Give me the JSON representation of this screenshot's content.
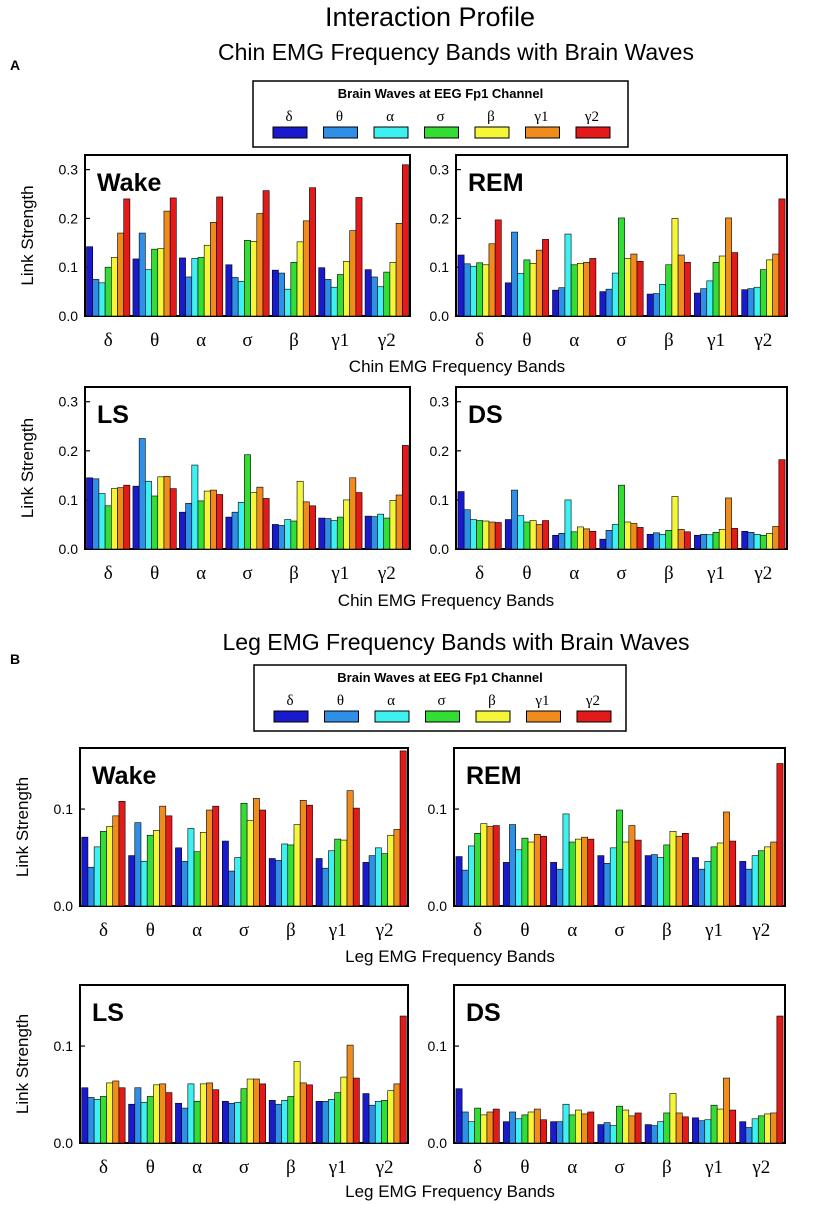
{
  "figure": {
    "title": "Interaction Profile",
    "panel_a": {
      "letter": "A",
      "subtitle": "Chin EMG Frequency Bands with Brain Waves",
      "xlabel": "Chin EMG Frequency Bands"
    },
    "panel_b": {
      "letter": "B",
      "subtitle": "Leg EMG Frequency Bands with Brain Waves",
      "xlabel": "Leg EMG Frequency Bands"
    },
    "ylabel": "Link Strength",
    "legend_title": "Brain Waves at EEG Fp1 Channel"
  },
  "series_colors": {
    "δ": "#1a1acd",
    "θ": "#2f8fe6",
    "α": "#3ff0f0",
    "σ": "#33dd33",
    "β": "#f5f53a",
    "γ1": "#f08c1e",
    "γ2": "#e21a1a"
  },
  "chart_data": [
    {
      "type": "bar",
      "panel": "A",
      "title": "Wake",
      "xlabel": "Chin EMG Frequency Bands",
      "ylabel": "Link Strength",
      "ylim": [
        0,
        0.33
      ],
      "yticks": [
        "0.0",
        "0.1",
        "0.2",
        "0.3"
      ],
      "categories": [
        "δ",
        "θ",
        "α",
        "σ",
        "β",
        "γ1",
        "γ2"
      ],
      "series": [
        {
          "name": "δ",
          "values": [
            0.142,
            0.117,
            0.119,
            0.105,
            0.094,
            0.099,
            0.095
          ]
        },
        {
          "name": "θ",
          "values": [
            0.075,
            0.17,
            0.08,
            0.079,
            0.088,
            0.075,
            0.08
          ]
        },
        {
          "name": "α",
          "values": [
            0.068,
            0.095,
            0.118,
            0.071,
            0.055,
            0.059,
            0.06
          ]
        },
        {
          "name": "σ",
          "values": [
            0.1,
            0.137,
            0.12,
            0.155,
            0.11,
            0.085,
            0.09
          ]
        },
        {
          "name": "β",
          "values": [
            0.12,
            0.138,
            0.145,
            0.153,
            0.152,
            0.112,
            0.11
          ]
        },
        {
          "name": "γ1",
          "values": [
            0.17,
            0.215,
            0.192,
            0.21,
            0.195,
            0.175,
            0.19
          ]
        },
        {
          "name": "γ2",
          "values": [
            0.24,
            0.242,
            0.244,
            0.257,
            0.263,
            0.243,
            0.31
          ]
        }
      ]
    },
    {
      "type": "bar",
      "panel": "A",
      "title": "REM",
      "xlabel": "Chin EMG Frequency Bands",
      "ylabel": "Link Strength",
      "ylim": [
        0,
        0.33
      ],
      "yticks": [
        "0.0",
        "0.1",
        "0.2",
        "0.3"
      ],
      "categories": [
        "δ",
        "θ",
        "α",
        "σ",
        "β",
        "γ1",
        "γ2"
      ],
      "series": [
        {
          "name": "δ",
          "values": [
            0.125,
            0.068,
            0.053,
            0.05,
            0.045,
            0.047,
            0.054
          ]
        },
        {
          "name": "θ",
          "values": [
            0.107,
            0.172,
            0.058,
            0.055,
            0.046,
            0.056,
            0.056
          ]
        },
        {
          "name": "α",
          "values": [
            0.102,
            0.087,
            0.168,
            0.088,
            0.065,
            0.072,
            0.059
          ]
        },
        {
          "name": "σ",
          "values": [
            0.109,
            0.115,
            0.105,
            0.201,
            0.105,
            0.11,
            0.095
          ]
        },
        {
          "name": "β",
          "values": [
            0.105,
            0.108,
            0.108,
            0.118,
            0.2,
            0.123,
            0.115
          ]
        },
        {
          "name": "γ1",
          "values": [
            0.148,
            0.135,
            0.11,
            0.127,
            0.125,
            0.201,
            0.127
          ]
        },
        {
          "name": "γ2",
          "values": [
            0.197,
            0.157,
            0.118,
            0.112,
            0.11,
            0.13,
            0.24
          ]
        }
      ]
    },
    {
      "type": "bar",
      "panel": "A",
      "title": "LS",
      "xlabel": "Chin EMG Frequency Bands",
      "ylabel": "Link Strength",
      "ylim": [
        0,
        0.33
      ],
      "yticks": [
        "0.0",
        "0.1",
        "0.2",
        "0.3"
      ],
      "categories": [
        "δ",
        "θ",
        "α",
        "σ",
        "β",
        "γ1",
        "γ2"
      ],
      "series": [
        {
          "name": "δ",
          "values": [
            0.145,
            0.128,
            0.075,
            0.065,
            0.05,
            0.063,
            0.067
          ]
        },
        {
          "name": "θ",
          "values": [
            0.143,
            0.225,
            0.093,
            0.075,
            0.048,
            0.062,
            0.066
          ]
        },
        {
          "name": "α",
          "values": [
            0.113,
            0.138,
            0.171,
            0.095,
            0.06,
            0.058,
            0.071
          ]
        },
        {
          "name": "σ",
          "values": [
            0.088,
            0.108,
            0.098,
            0.192,
            0.057,
            0.065,
            0.063
          ]
        },
        {
          "name": "β",
          "values": [
            0.123,
            0.147,
            0.118,
            0.115,
            0.138,
            0.1,
            0.099
          ]
        },
        {
          "name": "γ1",
          "values": [
            0.125,
            0.148,
            0.12,
            0.126,
            0.096,
            0.145,
            0.11
          ]
        },
        {
          "name": "γ2",
          "values": [
            0.13,
            0.123,
            0.111,
            0.103,
            0.088,
            0.115,
            0.211
          ]
        }
      ]
    },
    {
      "type": "bar",
      "panel": "A",
      "title": "DS",
      "xlabel": "Chin EMG Frequency Bands",
      "ylabel": "Link Strength",
      "ylim": [
        0,
        0.33
      ],
      "yticks": [
        "0.0",
        "0.1",
        "0.2",
        "0.3"
      ],
      "categories": [
        "δ",
        "θ",
        "α",
        "σ",
        "β",
        "γ1",
        "γ2"
      ],
      "series": [
        {
          "name": "δ",
          "values": [
            0.117,
            0.06,
            0.028,
            0.02,
            0.03,
            0.028,
            0.036
          ]
        },
        {
          "name": "θ",
          "values": [
            0.08,
            0.12,
            0.032,
            0.038,
            0.033,
            0.03,
            0.034
          ]
        },
        {
          "name": "α",
          "values": [
            0.06,
            0.068,
            0.1,
            0.05,
            0.03,
            0.029,
            0.03
          ]
        },
        {
          "name": "σ",
          "values": [
            0.058,
            0.055,
            0.035,
            0.13,
            0.038,
            0.034,
            0.028
          ]
        },
        {
          "name": "β",
          "values": [
            0.057,
            0.058,
            0.045,
            0.055,
            0.107,
            0.04,
            0.032
          ]
        },
        {
          "name": "γ1",
          "values": [
            0.055,
            0.05,
            0.041,
            0.052,
            0.04,
            0.104,
            0.046
          ]
        },
        {
          "name": "γ2",
          "values": [
            0.054,
            0.058,
            0.036,
            0.044,
            0.035,
            0.042,
            0.182
          ]
        }
      ]
    },
    {
      "type": "bar",
      "panel": "B",
      "title": "Wake",
      "xlabel": "Leg EMG Frequency Bands",
      "ylabel": "Link Strength",
      "ylim": [
        0,
        0.163
      ],
      "yticks": [
        "0.0",
        "0.1"
      ],
      "categories": [
        "δ",
        "θ",
        "α",
        "σ",
        "β",
        "γ1",
        "γ2"
      ],
      "series": [
        {
          "name": "δ",
          "values": [
            0.071,
            0.052,
            0.06,
            0.067,
            0.049,
            0.049,
            0.045
          ]
        },
        {
          "name": "θ",
          "values": [
            0.04,
            0.086,
            0.046,
            0.036,
            0.047,
            0.039,
            0.052
          ]
        },
        {
          "name": "α",
          "values": [
            0.061,
            0.046,
            0.08,
            0.05,
            0.064,
            0.057,
            0.06
          ]
        },
        {
          "name": "σ",
          "values": [
            0.077,
            0.073,
            0.056,
            0.106,
            0.063,
            0.069,
            0.054
          ]
        },
        {
          "name": "β",
          "values": [
            0.082,
            0.078,
            0.076,
            0.088,
            0.084,
            0.068,
            0.073
          ]
        },
        {
          "name": "γ1",
          "values": [
            0.093,
            0.103,
            0.099,
            0.111,
            0.109,
            0.119,
            0.079
          ]
        },
        {
          "name": "γ2",
          "values": [
            0.108,
            0.093,
            0.103,
            0.099,
            0.104,
            0.101,
            0.16
          ]
        }
      ]
    },
    {
      "type": "bar",
      "panel": "B",
      "title": "REM",
      "xlabel": "Leg EMG Frequency Bands",
      "ylabel": "Link Strength",
      "ylim": [
        0,
        0.163
      ],
      "yticks": [
        "0.0",
        "0.1"
      ],
      "categories": [
        "δ",
        "θ",
        "α",
        "σ",
        "β",
        "γ1",
        "γ2"
      ],
      "series": [
        {
          "name": "δ",
          "values": [
            0.051,
            0.045,
            0.045,
            0.052,
            0.052,
            0.05,
            0.046
          ]
        },
        {
          "name": "θ",
          "values": [
            0.037,
            0.084,
            0.038,
            0.044,
            0.053,
            0.038,
            0.038
          ]
        },
        {
          "name": "α",
          "values": [
            0.062,
            0.058,
            0.095,
            0.06,
            0.05,
            0.046,
            0.052
          ]
        },
        {
          "name": "σ",
          "values": [
            0.075,
            0.07,
            0.066,
            0.099,
            0.063,
            0.061,
            0.057
          ]
        },
        {
          "name": "β",
          "values": [
            0.085,
            0.066,
            0.069,
            0.066,
            0.077,
            0.065,
            0.061
          ]
        },
        {
          "name": "γ1",
          "values": [
            0.082,
            0.074,
            0.071,
            0.083,
            0.072,
            0.097,
            0.066
          ]
        },
        {
          "name": "γ2",
          "values": [
            0.083,
            0.072,
            0.069,
            0.068,
            0.075,
            0.067,
            0.147
          ]
        }
      ]
    },
    {
      "type": "bar",
      "panel": "B",
      "title": "LS",
      "xlabel": "Leg EMG Frequency Bands",
      "ylabel": "Link Strength",
      "ylim": [
        0,
        0.163
      ],
      "yticks": [
        "0.0",
        "0.1"
      ],
      "categories": [
        "δ",
        "θ",
        "α",
        "σ",
        "β",
        "γ1",
        "γ2"
      ],
      "series": [
        {
          "name": "δ",
          "values": [
            0.057,
            0.04,
            0.041,
            0.043,
            0.044,
            0.043,
            0.051
          ]
        },
        {
          "name": "θ",
          "values": [
            0.047,
            0.057,
            0.036,
            0.041,
            0.04,
            0.043,
            0.039
          ]
        },
        {
          "name": "α",
          "values": [
            0.045,
            0.042,
            0.061,
            0.042,
            0.044,
            0.045,
            0.043
          ]
        },
        {
          "name": "σ",
          "values": [
            0.048,
            0.048,
            0.043,
            0.056,
            0.048,
            0.052,
            0.044
          ]
        },
        {
          "name": "β",
          "values": [
            0.062,
            0.06,
            0.061,
            0.066,
            0.084,
            0.068,
            0.054
          ]
        },
        {
          "name": "γ1",
          "values": [
            0.064,
            0.061,
            0.062,
            0.066,
            0.062,
            0.101,
            0.061
          ]
        },
        {
          "name": "γ2",
          "values": [
            0.057,
            0.052,
            0.055,
            0.061,
            0.06,
            0.067,
            0.131
          ]
        }
      ]
    },
    {
      "type": "bar",
      "panel": "B",
      "title": "DS",
      "xlabel": "Leg EMG Frequency Bands",
      "ylabel": "Link Strength",
      "ylim": [
        0,
        0.163
      ],
      "yticks": [
        "0.0",
        "0.1"
      ],
      "categories": [
        "δ",
        "θ",
        "α",
        "σ",
        "β",
        "γ1",
        "γ2"
      ],
      "series": [
        {
          "name": "δ",
          "values": [
            0.056,
            0.022,
            0.022,
            0.019,
            0.019,
            0.026,
            0.022
          ]
        },
        {
          "name": "θ",
          "values": [
            0.032,
            0.032,
            0.022,
            0.021,
            0.018,
            0.023,
            0.016
          ]
        },
        {
          "name": "α",
          "values": [
            0.022,
            0.025,
            0.04,
            0.018,
            0.022,
            0.024,
            0.025
          ]
        },
        {
          "name": "σ",
          "values": [
            0.036,
            0.029,
            0.029,
            0.038,
            0.031,
            0.039,
            0.028
          ]
        },
        {
          "name": "β",
          "values": [
            0.029,
            0.032,
            0.034,
            0.034,
            0.051,
            0.035,
            0.03
          ]
        },
        {
          "name": "γ1",
          "values": [
            0.032,
            0.035,
            0.03,
            0.028,
            0.031,
            0.067,
            0.031
          ]
        },
        {
          "name": "γ2",
          "values": [
            0.035,
            0.024,
            0.032,
            0.031,
            0.027,
            0.034,
            0.131
          ]
        }
      ]
    }
  ]
}
